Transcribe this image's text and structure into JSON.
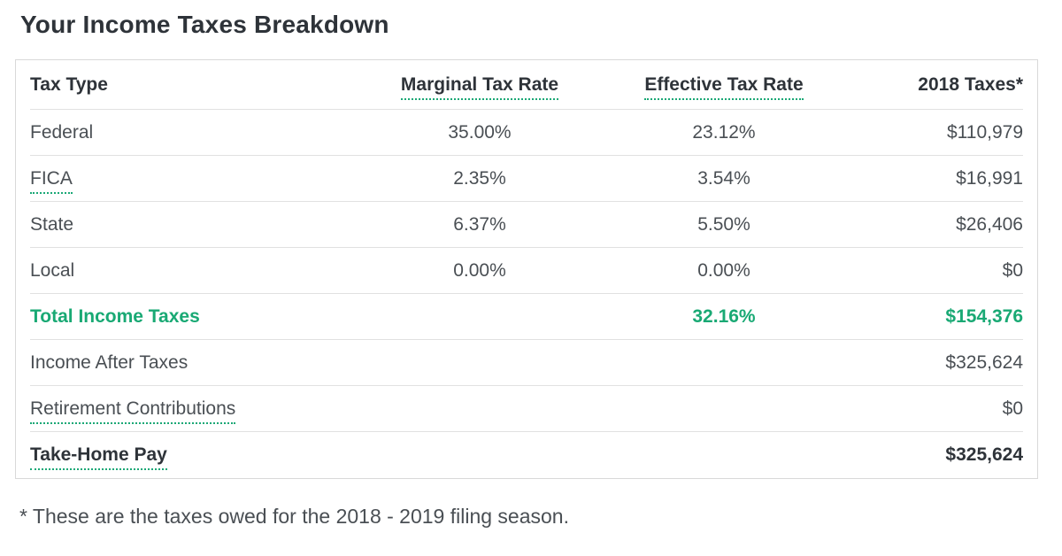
{
  "page": {
    "title": "Your Income Taxes Breakdown",
    "footnote": "* These are the taxes owed for the 2018 - 2019 filing season."
  },
  "colors": {
    "accent_green": "#19a974",
    "heading_text": "#2e3339",
    "body_text": "#4a4f54",
    "table_border": "#d9d9d9",
    "row_separator": "#e1e1e1"
  },
  "table": {
    "headers": [
      "Tax Type",
      "Marginal Tax Rate",
      "Effective Tax Rate",
      "2018 Taxes*"
    ],
    "rows": [
      {
        "label": "Federal",
        "marginal": "35.00%",
        "effective": "23.12%",
        "taxes": "$110,979"
      },
      {
        "label": "FICA",
        "marginal": "2.35%",
        "effective": "3.54%",
        "taxes": "$16,991"
      },
      {
        "label": "State",
        "marginal": "6.37%",
        "effective": "5.50%",
        "taxes": "$26,406"
      },
      {
        "label": "Local",
        "marginal": "0.00%",
        "effective": "0.00%",
        "taxes": "$0"
      },
      {
        "label": "Total Income Taxes",
        "marginal": "",
        "effective": "32.16%",
        "taxes": "$154,376"
      },
      {
        "label": "Income After Taxes",
        "marginal": "",
        "effective": "",
        "taxes": "$325,624"
      },
      {
        "label": "Retirement Contributions",
        "marginal": "",
        "effective": "",
        "taxes": "$0"
      },
      {
        "label": "Take-Home Pay",
        "marginal": "",
        "effective": "",
        "taxes": "$325,624"
      }
    ]
  },
  "chart_data": {
    "type": "table",
    "title": "Your Income Taxes Breakdown",
    "columns": [
      "Tax Type",
      "Marginal Tax Rate",
      "Effective Tax Rate",
      "2018 Taxes*"
    ],
    "rows": [
      [
        "Federal",
        "35.00%",
        "23.12%",
        "$110,979"
      ],
      [
        "FICA",
        "2.35%",
        "3.54%",
        "$16,991"
      ],
      [
        "State",
        "6.37%",
        "5.50%",
        "$26,406"
      ],
      [
        "Local",
        "0.00%",
        "0.00%",
        "$0"
      ],
      [
        "Total Income Taxes",
        "",
        "32.16%",
        "$154,376"
      ],
      [
        "Income After Taxes",
        "",
        "",
        "$325,624"
      ],
      [
        "Retirement Contributions",
        "",
        "",
        "$0"
      ],
      [
        "Take-Home Pay",
        "",
        "",
        "$325,624"
      ]
    ],
    "footnote": "* These are the taxes owed for the 2018 - 2019 filing season.",
    "layout_hints": {
      "highlighted_row": "Total Income Taxes",
      "highlight_color": "#19a974",
      "dotted_tooltip_terms": [
        "Marginal Tax Rate",
        "Effective Tax Rate",
        "FICA",
        "Retirement Contributions",
        "Take-Home Pay"
      ]
    }
  }
}
